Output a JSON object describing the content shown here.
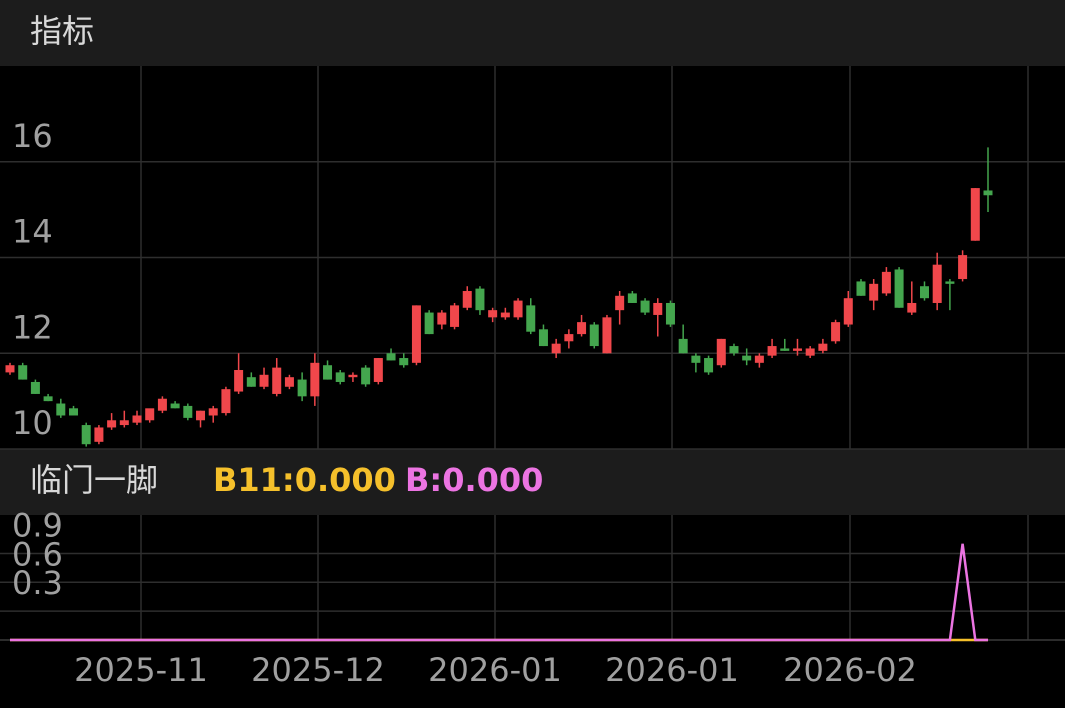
{
  "header": {
    "title": "指标"
  },
  "chart_data": [
    {
      "type": "candlestick",
      "ylim": [
        10,
        18
      ],
      "yticks": [
        10,
        12,
        14,
        16
      ],
      "grid": true,
      "up_color": "#f0474b",
      "down_color": "#44a64e",
      "open": [
        11.6,
        11.75,
        11.4,
        11.1,
        10.95,
        10.85,
        10.5,
        10.15,
        10.45,
        10.5,
        10.55,
        10.6,
        10.8,
        10.95,
        10.9,
        10.6,
        10.7,
        10.75,
        11.2,
        11.5,
        11.3,
        11.15,
        11.3,
        11.45,
        11.1,
        11.75,
        11.6,
        11.5,
        11.7,
        11.4,
        12.0,
        11.9,
        11.8,
        12.85,
        12.6,
        12.55,
        12.95,
        13.35,
        12.75,
        12.75,
        12.75,
        13.0,
        12.5,
        12.0,
        12.25,
        12.4,
        12.6,
        12.0,
        12.9,
        13.25,
        13.1,
        12.8,
        13.05,
        12.3,
        11.95,
        11.9,
        11.75,
        12.15,
        11.95,
        11.8,
        11.95,
        12.1,
        12.05,
        11.95,
        12.05,
        12.25,
        12.6,
        13.5,
        13.1,
        13.25,
        13.75,
        12.85,
        13.4,
        13.05,
        13.5,
        13.55,
        14.35,
        15.4
      ],
      "high": [
        11.8,
        11.8,
        11.45,
        11.15,
        11.05,
        10.9,
        10.55,
        10.5,
        10.75,
        10.8,
        10.8,
        10.8,
        11.1,
        11.0,
        10.95,
        10.8,
        10.9,
        11.3,
        12.0,
        11.6,
        11.7,
        11.9,
        11.55,
        11.6,
        12.0,
        11.85,
        11.65,
        11.6,
        11.75,
        11.9,
        12.1,
        12.0,
        13.0,
        12.9,
        12.9,
        13.05,
        13.4,
        13.4,
        12.95,
        12.95,
        13.15,
        13.15,
        12.6,
        12.3,
        12.5,
        12.8,
        12.65,
        12.8,
        13.3,
        13.3,
        13.15,
        13.15,
        13.1,
        12.6,
        12.0,
        11.95,
        12.3,
        12.2,
        12.1,
        12.0,
        12.3,
        12.3,
        12.3,
        12.15,
        12.3,
        12.7,
        13.3,
        13.55,
        13.55,
        13.8,
        13.8,
        13.5,
        13.5,
        14.1,
        13.55,
        14.15,
        15.45,
        16.3
      ],
      "low": [
        11.55,
        11.45,
        11.15,
        11.0,
        10.65,
        10.7,
        10.05,
        10.1,
        10.4,
        10.45,
        10.5,
        10.55,
        10.75,
        10.85,
        10.6,
        10.45,
        10.55,
        10.7,
        11.15,
        11.3,
        11.25,
        11.1,
        11.25,
        11.0,
        10.9,
        11.45,
        11.35,
        11.4,
        11.3,
        11.35,
        11.85,
        11.7,
        11.75,
        12.4,
        12.5,
        12.5,
        12.9,
        12.8,
        12.65,
        12.7,
        12.7,
        12.4,
        12.15,
        11.9,
        12.1,
        12.35,
        12.1,
        12.0,
        12.6,
        13.05,
        12.8,
        12.35,
        12.55,
        12.0,
        11.6,
        11.55,
        11.7,
        11.95,
        11.75,
        11.7,
        11.9,
        12.05,
        11.95,
        11.9,
        12.0,
        12.2,
        12.55,
        13.2,
        12.9,
        13.2,
        12.95,
        12.8,
        13.1,
        12.9,
        12.9,
        13.5,
        14.35,
        14.95
      ],
      "close": [
        11.75,
        11.45,
        11.15,
        11.0,
        10.7,
        10.7,
        10.1,
        10.45,
        10.6,
        10.6,
        10.7,
        10.85,
        11.05,
        10.85,
        10.65,
        10.8,
        10.85,
        11.25,
        11.65,
        11.3,
        11.55,
        11.7,
        11.5,
        11.1,
        11.8,
        11.45,
        11.4,
        11.55,
        11.35,
        11.9,
        11.85,
        11.75,
        13.0,
        12.4,
        12.85,
        13.0,
        13.3,
        12.9,
        12.9,
        12.85,
        13.1,
        12.45,
        12.15,
        12.2,
        12.4,
        12.65,
        12.15,
        12.75,
        13.2,
        13.05,
        12.85,
        13.05,
        12.6,
        12.0,
        11.8,
        11.6,
        12.3,
        12.0,
        11.85,
        11.95,
        12.15,
        12.05,
        12.1,
        12.1,
        12.2,
        12.65,
        13.15,
        13.2,
        13.45,
        13.7,
        12.95,
        13.05,
        13.15,
        13.85,
        13.45,
        14.05,
        15.45,
        15.3
      ]
    },
    {
      "type": "line",
      "title": "临门一脚",
      "ylim": [
        0,
        1.3
      ],
      "yticks": [
        0.3,
        0.6,
        0.9
      ],
      "grid": true,
      "series": [
        {
          "name": "B11:0.000",
          "color": "#f5c02b",
          "values": [
            0,
            0,
            0,
            0,
            0,
            0,
            0,
            0,
            0,
            0,
            0,
            0,
            0,
            0,
            0,
            0,
            0,
            0,
            0,
            0,
            0,
            0,
            0,
            0,
            0,
            0,
            0,
            0,
            0,
            0,
            0,
            0,
            0,
            0,
            0,
            0,
            0,
            0,
            0,
            0,
            0,
            0,
            0,
            0,
            0,
            0,
            0,
            0,
            0,
            0,
            0,
            0,
            0,
            0,
            0,
            0,
            0,
            0,
            0,
            0,
            0,
            0,
            0,
            0,
            0,
            0,
            0,
            0,
            0,
            0,
            0,
            0,
            0,
            0,
            0,
            0,
            0,
            0
          ]
        },
        {
          "name": "B:0.000",
          "color": "#ec74e2",
          "values": [
            0,
            0,
            0,
            0,
            0,
            0,
            0,
            0,
            0,
            0,
            0,
            0,
            0,
            0,
            0,
            0,
            0,
            0,
            0,
            0,
            0,
            0,
            0,
            0,
            0,
            0,
            0,
            0,
            0,
            0,
            0,
            0,
            0,
            0,
            0,
            0,
            0,
            0,
            0,
            0,
            0,
            0,
            0,
            0,
            0,
            0,
            0,
            0,
            0,
            0,
            0,
            0,
            0,
            0,
            0,
            0,
            0,
            0,
            0,
            0,
            0,
            0,
            0,
            0,
            0,
            0,
            0,
            0,
            0,
            0,
            0,
            0,
            0,
            0,
            0,
            1,
            0,
            0
          ]
        }
      ]
    }
  ],
  "x_axis": {
    "labels": [
      "2025-11",
      "2025-12",
      "2026-01",
      "2026-01",
      "2026-02"
    ]
  }
}
